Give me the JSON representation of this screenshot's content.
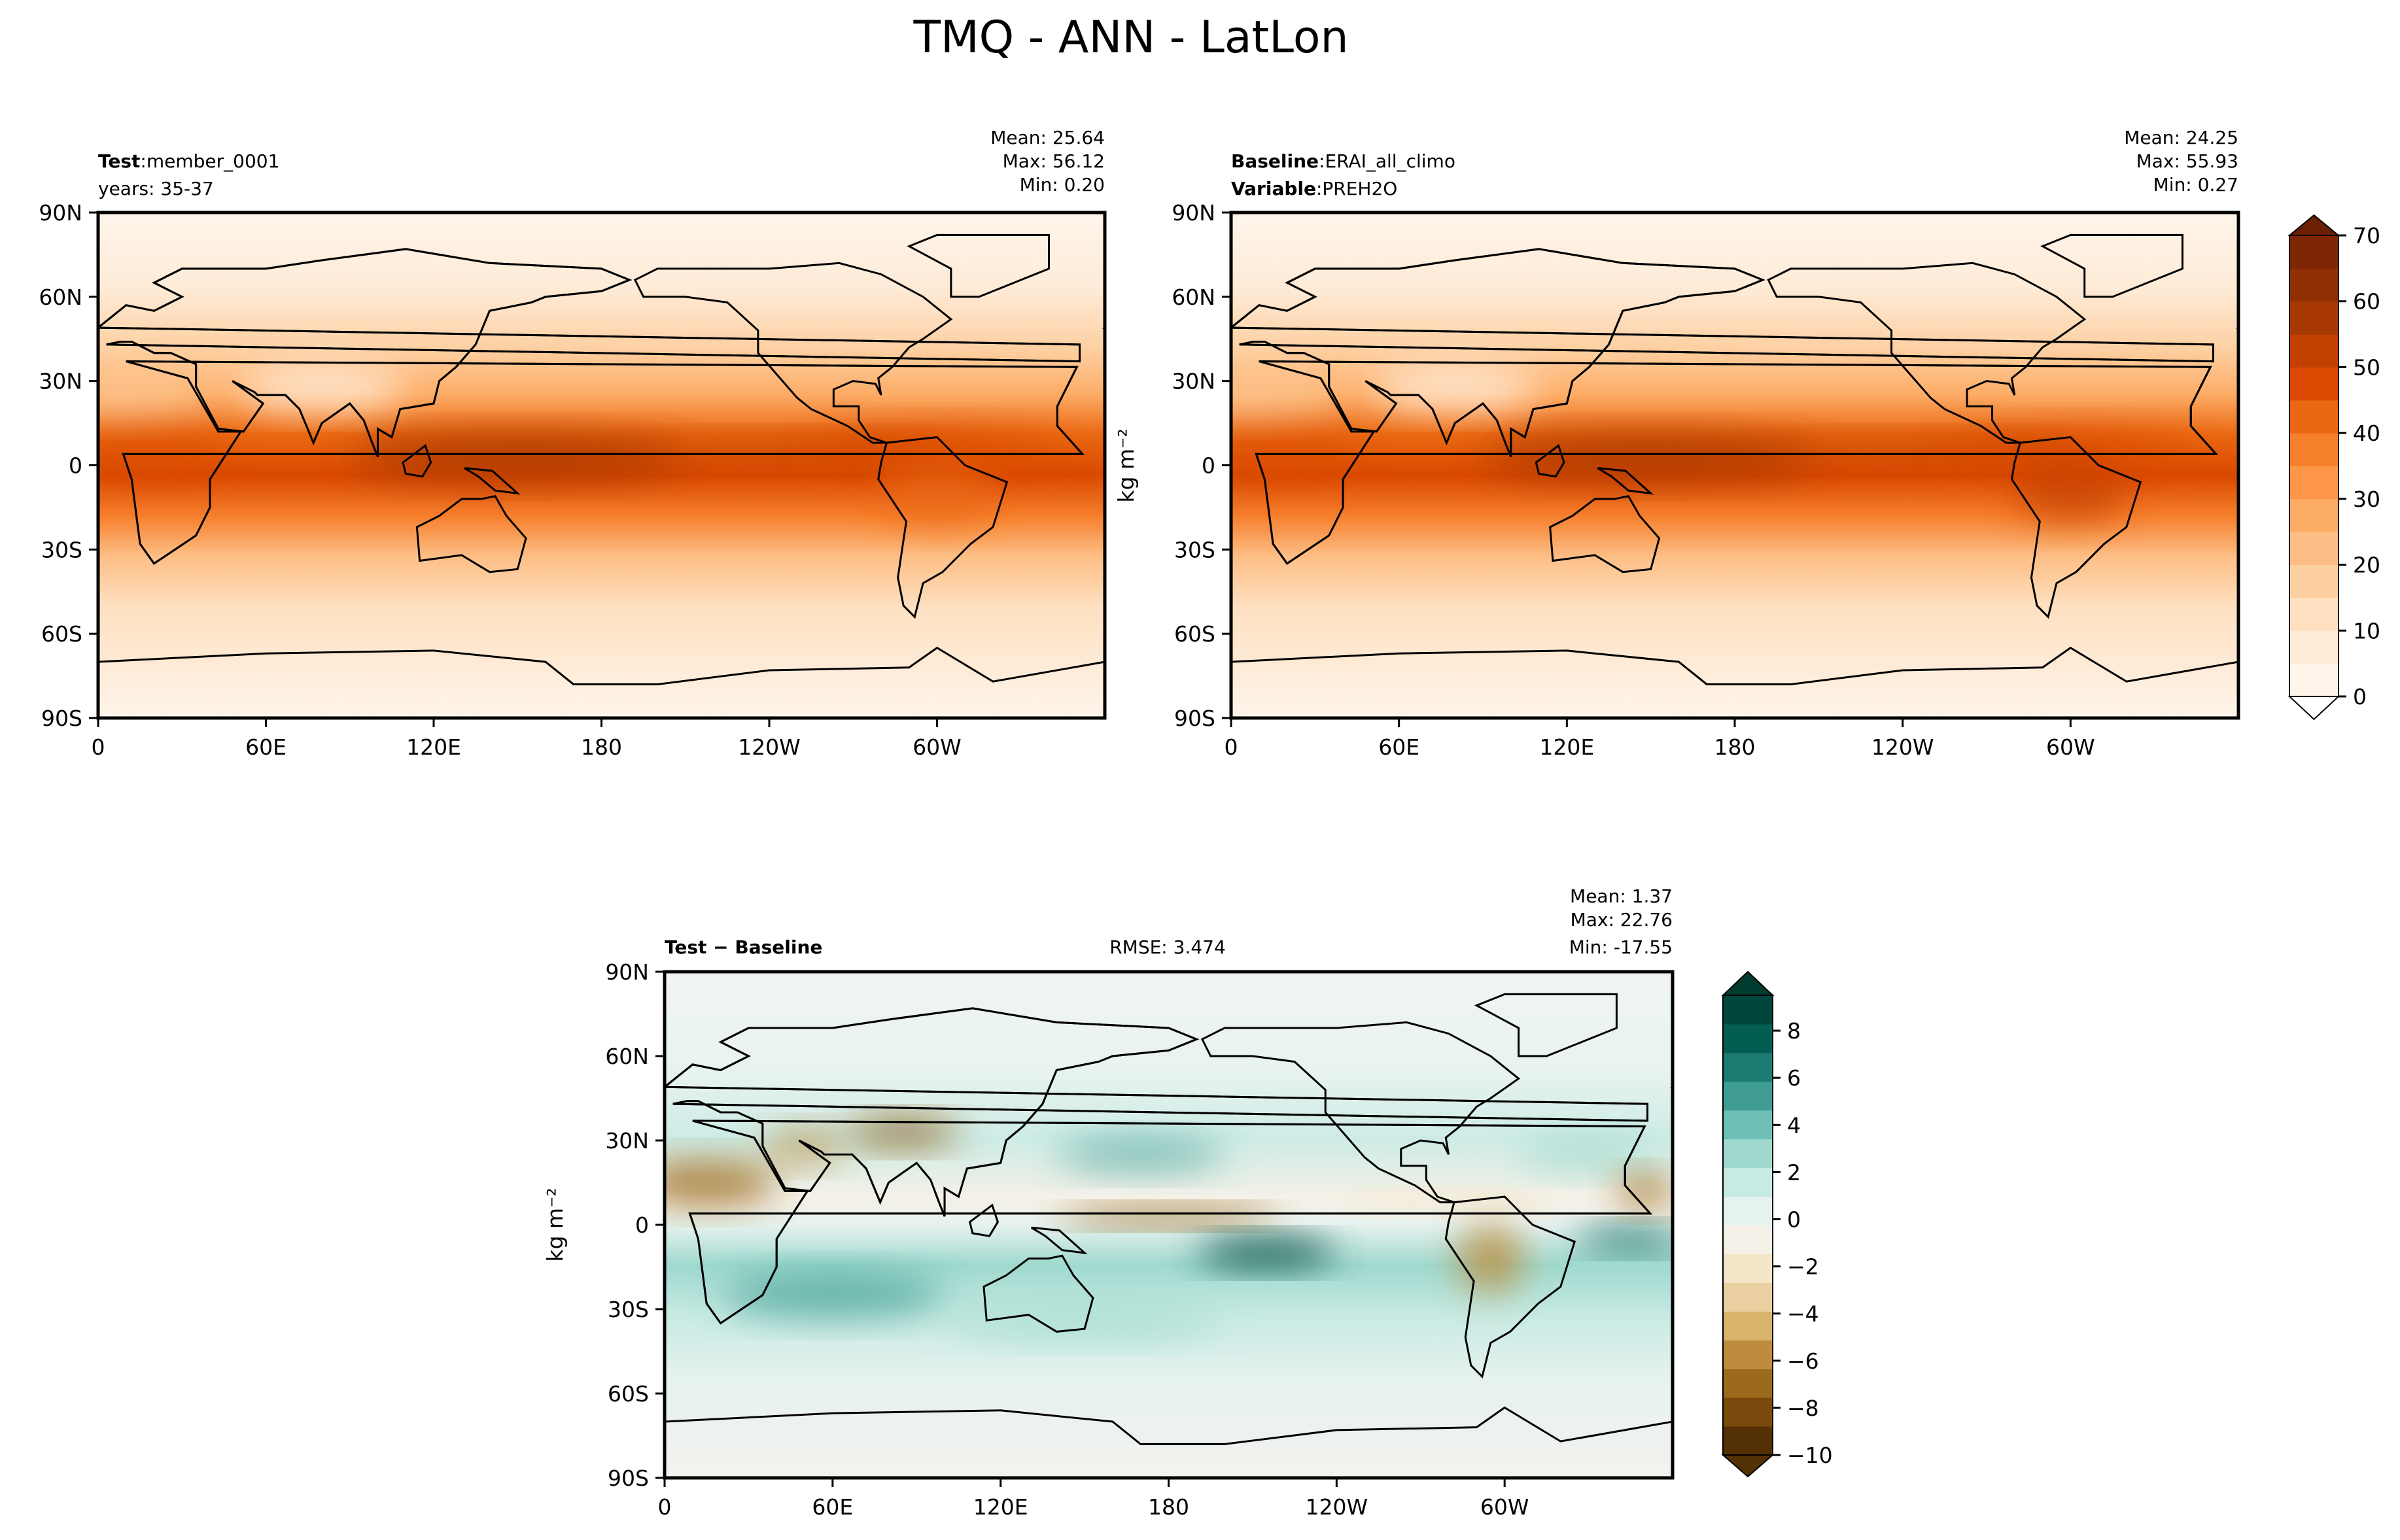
{
  "title": "TMQ - ANN - LatLon",
  "colors": {
    "oranges": [
      "#fff5eb",
      "#feebd7",
      "#fee0c1",
      "#fdd0a2",
      "#fdbe85",
      "#fdac66",
      "#fd9647",
      "#f67f2c",
      "#ea6812",
      "#d94901",
      "#c24102",
      "#a73703",
      "#8f2f03",
      "#7f2704"
    ],
    "brbg": [
      "#543005",
      "#7a4a0c",
      "#9c6a1d",
      "#bf8c3d",
      "#d8b46d",
      "#ead0a0",
      "#f4e6c8",
      "#f5f1e8",
      "#e6f2ef",
      "#c7eae3",
      "#9fd9ce",
      "#6fc0b4",
      "#3f9d93",
      "#1c7b72",
      "#045d52",
      "#01463c"
    ]
  },
  "chart_data": [
    {
      "type": "heatmap",
      "panel": "test",
      "header_label": "Test",
      "header_value": ":member_0001",
      "header_line2": "years: 35-37",
      "stats": {
        "mean": "Mean: 25.64",
        "max": "Max: 56.12",
        "min": "Min:  0.20"
      },
      "ylabel": "",
      "xticks": [
        "0",
        "60E",
        "120E",
        "180",
        "120W",
        "60W"
      ],
      "yticks": [
        "90N",
        "60N",
        "30N",
        "0",
        "30S",
        "60S",
        "90S"
      ]
    },
    {
      "type": "heatmap",
      "panel": "baseline",
      "header_label": "Baseline",
      "header_value": ":ERAI_all_climo",
      "header_label2": "Variable",
      "header_value2": ":PREH2O",
      "stats": {
        "mean": "Mean: 24.25",
        "max": "Max: 55.93",
        "min": "Min:  0.27"
      },
      "ylabel": "kg m⁻²",
      "xticks": [
        "0",
        "60E",
        "120E",
        "180",
        "120W",
        "60W"
      ],
      "yticks": [
        "90N",
        "60N",
        "30N",
        "0",
        "30S",
        "60S",
        "90S"
      ],
      "colorbar": {
        "ticks": [
          "0",
          "10",
          "20",
          "30",
          "40",
          "50",
          "60",
          "70"
        ],
        "range": [
          0,
          70
        ],
        "extend": "both"
      }
    },
    {
      "type": "heatmap",
      "panel": "difference",
      "header_label": "Test − Baseline",
      "rmse": "RMSE: 3.474",
      "stats": {
        "mean": "Mean:  1.37",
        "max": "Max: 22.76",
        "min": "Min: -17.55"
      },
      "ylabel": "kg m⁻²",
      "xticks": [
        "0",
        "60E",
        "120E",
        "180",
        "120W",
        "60W"
      ],
      "yticks": [
        "90N",
        "60N",
        "30N",
        "0",
        "30S",
        "60S",
        "90S"
      ],
      "colorbar": {
        "ticks": [
          "−10",
          "−8",
          "−6",
          "−4",
          "−2",
          "0",
          "2",
          "4",
          "6",
          "8"
        ],
        "range": [
          -10,
          9.5
        ],
        "extend": "both"
      }
    }
  ]
}
